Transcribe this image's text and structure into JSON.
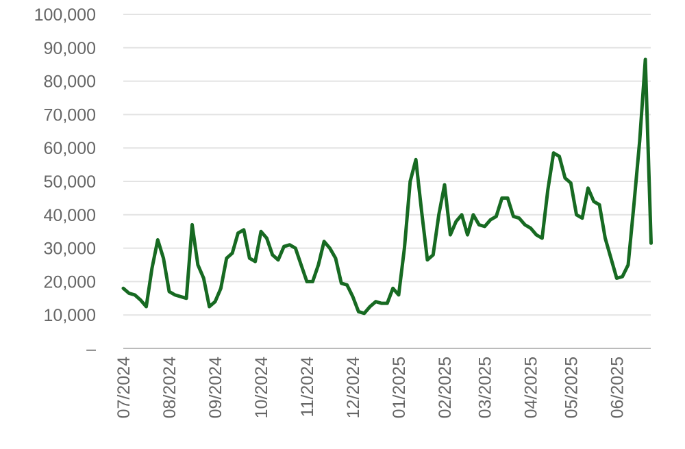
{
  "chart_data": {
    "type": "line",
    "categories": [
      "07/2024",
      null,
      null,
      null,
      null,
      null,
      null,
      null,
      "08/2024",
      null,
      null,
      null,
      null,
      null,
      null,
      null,
      "09/2024",
      null,
      null,
      null,
      null,
      null,
      null,
      null,
      "10/2024",
      null,
      null,
      null,
      null,
      null,
      null,
      null,
      "11/2024",
      null,
      null,
      null,
      null,
      null,
      null,
      null,
      "12/2024",
      null,
      null,
      null,
      null,
      null,
      null,
      null,
      "01/2025",
      null,
      null,
      null,
      null,
      null,
      null,
      null,
      "02/2025",
      null,
      null,
      null,
      null,
      null,
      null,
      "03/2025",
      null,
      null,
      null,
      null,
      null,
      null,
      null,
      "04/2025",
      null,
      null,
      null,
      null,
      null,
      null,
      "05/2025",
      null,
      null,
      null,
      null,
      null,
      null,
      null,
      "06/2025",
      null,
      null,
      null,
      null,
      null,
      null
    ],
    "series": [
      {
        "color": "#176a22",
        "values": [
          18000,
          16500,
          16000,
          14500,
          12500,
          24000,
          32500,
          27000,
          17000,
          16000,
          15500,
          15000,
          37000,
          25000,
          21000,
          12500,
          14000,
          18000,
          27000,
          28500,
          34500,
          35500,
          27000,
          26000,
          35000,
          33000,
          28000,
          26500,
          30500,
          31000,
          30000,
          25000,
          20000,
          20000,
          25000,
          32000,
          30000,
          27000,
          19500,
          19000,
          15500,
          11000,
          10500,
          12500,
          14000,
          13500,
          13500,
          18000,
          16000,
          30000,
          50000,
          56500,
          41000,
          26500,
          28000,
          40000,
          49000,
          34000,
          38000,
          40000,
          34000,
          40000,
          37000,
          36500,
          38500,
          39500,
          45000,
          45000,
          39500,
          39000,
          37000,
          36000,
          34000,
          33000,
          47500,
          58500,
          57500,
          51000,
          49500,
          40000,
          39000,
          48000,
          44000,
          43000,
          33000,
          27000,
          21000,
          21500,
          25000,
          43000,
          62000,
          86500,
          31500
        ]
      }
    ],
    "ylim": [
      0,
      100000
    ],
    "yticks": [
      {
        "value": 0,
        "label": "–"
      },
      {
        "value": 10000,
        "label": "10,000"
      },
      {
        "value": 20000,
        "label": "20,000"
      },
      {
        "value": 30000,
        "label": "30,000"
      },
      {
        "value": 40000,
        "label": "40,000"
      },
      {
        "value": 50000,
        "label": "50,000"
      },
      {
        "value": 60000,
        "label": "60,000"
      },
      {
        "value": 70000,
        "label": "70,000"
      },
      {
        "value": 80000,
        "label": "80,000"
      },
      {
        "value": 90000,
        "label": "90,000"
      },
      {
        "value": 100000,
        "label": "100,000"
      }
    ],
    "grid": true
  }
}
